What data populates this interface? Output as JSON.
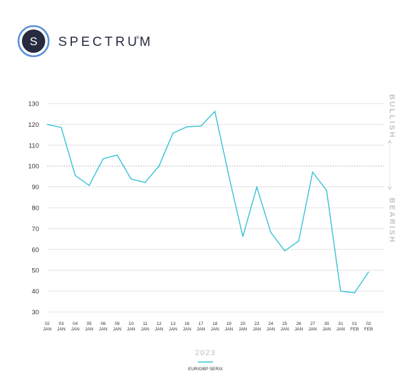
{
  "brand": {
    "name": "SPECTRUM",
    "reg_mark": "®",
    "logo_letter": "S"
  },
  "colors": {
    "line": "#33c2d5",
    "grid": "#dcdcdc",
    "reference": "#9a9a9a",
    "side_labels": "#c4c4c4"
  },
  "chart_data": {
    "type": "line",
    "x": [
      {
        "day": "02",
        "month": "JAN"
      },
      {
        "day": "03",
        "month": "JAN"
      },
      {
        "day": "04",
        "month": "JAN"
      },
      {
        "day": "05",
        "month": "JAN"
      },
      {
        "day": "06",
        "month": "JAN"
      },
      {
        "day": "09",
        "month": "JAN"
      },
      {
        "day": "10",
        "month": "JAN"
      },
      {
        "day": "11",
        "month": "JAN"
      },
      {
        "day": "12",
        "month": "JAN"
      },
      {
        "day": "13",
        "month": "JAN"
      },
      {
        "day": "16",
        "month": "JAN"
      },
      {
        "day": "17",
        "month": "JAN"
      },
      {
        "day": "18",
        "month": "JAN"
      },
      {
        "day": "19",
        "month": "JAN"
      },
      {
        "day": "20",
        "month": "JAN"
      },
      {
        "day": "23",
        "month": "JAN"
      },
      {
        "day": "24",
        "month": "JAN"
      },
      {
        "day": "25",
        "month": "JAN"
      },
      {
        "day": "26",
        "month": "JAN"
      },
      {
        "day": "27",
        "month": "JAN"
      },
      {
        "day": "30",
        "month": "JAN"
      },
      {
        "day": "31",
        "month": "JAN"
      },
      {
        "day": "01",
        "month": "FEB"
      },
      {
        "day": "02",
        "month": "FEB"
      }
    ],
    "series": [
      {
        "name": "EUR/GBP SERIX",
        "values": [
          120,
          118.5,
          95.5,
          90.7,
          103.5,
          105.3,
          93.8,
          92.1,
          100,
          115.8,
          118.8,
          119.2,
          126.2,
          95.3,
          66.2,
          89.9,
          68.2,
          59.3,
          64,
          97.1,
          88.3,
          40,
          39.2,
          49.1
        ]
      }
    ],
    "y_ticks": [
      130,
      120,
      110,
      100,
      90,
      80,
      70,
      60,
      50,
      40,
      30
    ],
    "ylim": [
      30,
      130
    ],
    "reference_line": 100,
    "year_label": "2023",
    "upper_label": "BULLISH",
    "lower_label": "BEARISH",
    "grid": true,
    "legend": "bottom-center"
  }
}
